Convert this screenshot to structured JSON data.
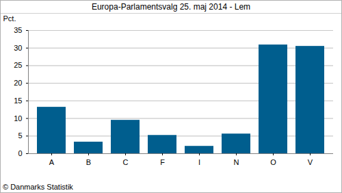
{
  "chart_data": {
    "type": "bar",
    "title": "Europa-Parlamentsvalg 25. maj 2014 - Lem",
    "y_label": "Pct.",
    "caption": "© Danmarks Statistik",
    "categories": [
      "A",
      "B",
      "C",
      "F",
      "I",
      "N",
      "O",
      "V"
    ],
    "values": [
      13.2,
      3.3,
      9.5,
      5.2,
      2.1,
      5.6,
      30.9,
      30.5
    ],
    "color": "#005e8e",
    "ylim": [
      0,
      35
    ],
    "yticks": [
      0,
      5,
      10,
      15,
      20,
      25,
      30,
      35
    ],
    "grid": true
  }
}
